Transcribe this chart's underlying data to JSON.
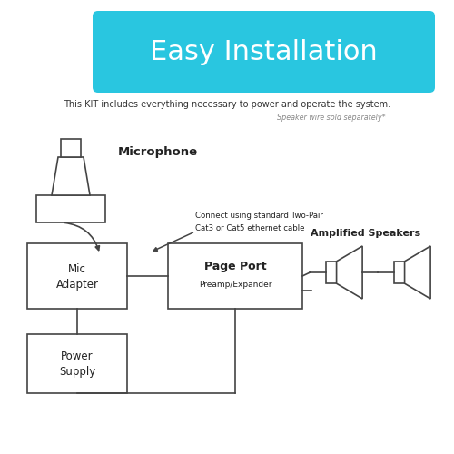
{
  "title": "Easy Installation",
  "title_bg": "#29C6E0",
  "title_fontsize": 22,
  "subtitle": "This KIT includes everything necessary to power and operate the system.",
  "subtitle2": "Speaker wire sold separately*",
  "bg_color": "#ffffff",
  "mic_label": "Microphone",
  "mic_adapter_label": [
    "Mic",
    "Adapter"
  ],
  "page_port_label": [
    "Page Port",
    "Preamp/Expander"
  ],
  "power_supply_label": [
    "Power",
    "Supply"
  ],
  "amplified_speakers_label": "Amplified Speakers",
  "connect_note": [
    "Connect using standard Two-Pair",
    "Cat3 or Cat5 ethernet cable"
  ],
  "box_color": "#ffffff",
  "box_edge": "#444444",
  "line_color": "#444444",
  "text_color": "#222222",
  "subtitle_color": "#333333",
  "italic_color": "#888888"
}
